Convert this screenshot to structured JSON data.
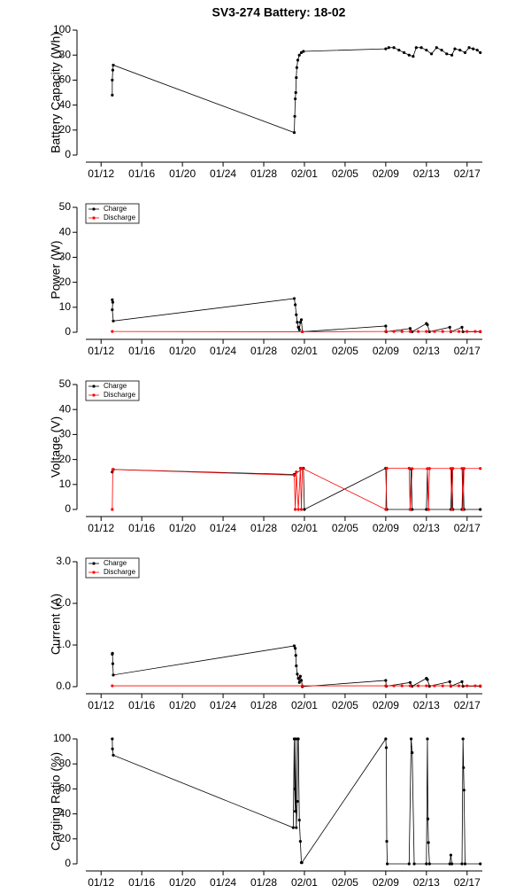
{
  "chart_data": [
    {
      "type": "line",
      "title": "SV3-274 Battery: 18-02",
      "ylabel": "Battery Capacity (Wh)",
      "xlim": [
        10.5,
        49.5
      ],
      "ylim": [
        0,
        100
      ],
      "yticks": [
        0,
        20,
        40,
        60,
        80,
        100
      ],
      "xticks": [
        {
          "value": 12,
          "label": "01/12"
        },
        {
          "value": 16,
          "label": "01/16"
        },
        {
          "value": 20,
          "label": "01/20"
        },
        {
          "value": 24,
          "label": "01/24"
        },
        {
          "value": 28,
          "label": "01/28"
        },
        {
          "value": 32,
          "label": "02/01"
        },
        {
          "value": 36,
          "label": "02/05"
        },
        {
          "value": 40,
          "label": "02/09"
        },
        {
          "value": 44,
          "label": "02/13"
        },
        {
          "value": 48,
          "label": "02/17"
        }
      ],
      "series": [
        {
          "color": "#000000",
          "x": [
            13.1,
            13.1,
            13.15,
            13.2,
            31.0,
            31.05,
            31.1,
            31.15,
            31.2,
            31.25,
            31.35,
            31.5,
            31.7,
            31.9,
            40.0,
            40.3,
            40.8,
            41.3,
            41.8,
            42.3,
            42.7,
            43.0,
            43.5,
            44.0,
            44.5,
            45.0,
            45.5,
            46.0,
            46.5,
            46.8,
            47.3,
            47.8,
            48.2,
            48.6,
            49.0,
            49.3
          ],
          "values": [
            48,
            60,
            68,
            72,
            18,
            31,
            45,
            50,
            62,
            70,
            76,
            80,
            82,
            83,
            85,
            86,
            86,
            84,
            82,
            80,
            79,
            86,
            86,
            84,
            81,
            86,
            84,
            81,
            80,
            85,
            84,
            82,
            86,
            85,
            84,
            82
          ]
        }
      ]
    },
    {
      "type": "line",
      "ylabel": "Power (W)",
      "legend": "topleft",
      "xlim": [
        10.5,
        49.5
      ],
      "ylim": [
        0,
        50
      ],
      "yticks": [
        0,
        10,
        20,
        30,
        40,
        50
      ],
      "xticks": [
        {
          "value": 12,
          "label": "01/12"
        },
        {
          "value": 16,
          "label": "01/16"
        },
        {
          "value": 20,
          "label": "01/20"
        },
        {
          "value": 24,
          "label": "01/24"
        },
        {
          "value": 28,
          "label": "01/28"
        },
        {
          "value": 32,
          "label": "02/01"
        },
        {
          "value": 36,
          "label": "02/05"
        },
        {
          "value": 40,
          "label": "02/09"
        },
        {
          "value": 44,
          "label": "02/13"
        },
        {
          "value": 48,
          "label": "02/17"
        }
      ],
      "series": [
        {
          "name": "Charge",
          "color": "#000000",
          "x": [
            13.1,
            13.15,
            13.1,
            13.2,
            31.0,
            31.1,
            31.2,
            31.3,
            31.4,
            31.5,
            31.6,
            31.7,
            31.8,
            40.0,
            40.05,
            42.4,
            42.6,
            44.0,
            44.1,
            44.3,
            46.3,
            46.4,
            47.5,
            47.6,
            49.3
          ],
          "values": [
            13,
            12,
            9,
            4.5,
            13.5,
            11,
            7,
            4,
            2,
            1,
            4,
            5,
            0.2,
            2.5,
            0.2,
            1.5,
            0.2,
            3.5,
            3,
            0.2,
            2,
            0.2,
            2,
            0.2,
            0.2
          ]
        },
        {
          "name": "Discharge",
          "color": "#ff0000",
          "x": [
            13.1,
            31.8,
            40.0,
            40.8,
            41.6,
            42.4,
            43.2,
            44.0,
            44.8,
            45.6,
            46.4,
            47.2,
            48.0,
            48.8,
            49.3
          ],
          "values": [
            0.3,
            0.2,
            0.3,
            0.3,
            0.3,
            0.3,
            0.3,
            0.3,
            0.3,
            0.3,
            0.3,
            0.3,
            0.3,
            0.3,
            0.3
          ]
        }
      ]
    },
    {
      "type": "line",
      "ylabel": "Voltage (V)",
      "legend": "topleft",
      "xlim": [
        10.5,
        49.5
      ],
      "ylim": [
        0,
        50
      ],
      "yticks": [
        0,
        10,
        20,
        30,
        40,
        50
      ],
      "xticks": [
        {
          "value": 12,
          "label": "01/12"
        },
        {
          "value": 16,
          "label": "01/16"
        },
        {
          "value": 20,
          "label": "01/20"
        },
        {
          "value": 24,
          "label": "01/24"
        },
        {
          "value": 28,
          "label": "01/28"
        },
        {
          "value": 32,
          "label": "02/01"
        },
        {
          "value": 36,
          "label": "02/05"
        },
        {
          "value": 40,
          "label": "02/09"
        },
        {
          "value": 44,
          "label": "02/13"
        },
        {
          "value": 48,
          "label": "02/17"
        }
      ],
      "series": [
        {
          "name": "Charge",
          "color": "#000000",
          "x": [
            13.1,
            13.2,
            31.0,
            31.9,
            32.0,
            40.0,
            40.1,
            42.4,
            42.5,
            42.6,
            44.0,
            44.1,
            44.2,
            46.4,
            46.5,
            46.6,
            47.5,
            47.6,
            47.7,
            49.3
          ],
          "values": [
            15,
            16,
            14,
            16.5,
            0,
            16.5,
            0,
            0,
            16.2,
            0,
            0,
            16.3,
            0,
            0,
            16.3,
            0,
            0,
            16.3,
            0,
            0
          ]
        },
        {
          "name": "Discharge",
          "color": "#ff0000",
          "x": [
            13.1,
            13.15,
            31.0,
            31.1,
            31.2,
            31.4,
            31.6,
            31.7,
            31.8,
            40.0,
            40.1,
            42.3,
            42.4,
            42.6,
            44.1,
            44.2,
            44.3,
            46.4,
            46.5,
            46.6,
            47.5,
            47.6,
            47.7,
            49.3
          ],
          "values": [
            0,
            16,
            13.7,
            0,
            15,
            0,
            16.5,
            0,
            16.5,
            0,
            16.5,
            16.5,
            0,
            16.3,
            16.3,
            0,
            16.4,
            16.4,
            0,
            16.4,
            16.4,
            0,
            16.4,
            16.4
          ]
        }
      ]
    },
    {
      "type": "line",
      "ylabel": "Current (A)",
      "legend": "topleft",
      "xlim": [
        10.5,
        49.5
      ],
      "ylim": [
        0,
        3
      ],
      "yticks": [
        {
          "value": 0,
          "label": "0.0"
        },
        {
          "value": 1,
          "label": "1.0"
        },
        {
          "value": 2,
          "label": "2.0"
        },
        {
          "value": 3,
          "label": "3.0"
        }
      ],
      "xticks": [
        {
          "value": 12,
          "label": "01/12"
        },
        {
          "value": 16,
          "label": "01/16"
        },
        {
          "value": 20,
          "label": "01/20"
        },
        {
          "value": 24,
          "label": "01/24"
        },
        {
          "value": 28,
          "label": "01/28"
        },
        {
          "value": 32,
          "label": "02/01"
        },
        {
          "value": 36,
          "label": "02/05"
        },
        {
          "value": 40,
          "label": "02/09"
        },
        {
          "value": 44,
          "label": "02/13"
        },
        {
          "value": 48,
          "label": "02/17"
        }
      ],
      "series": [
        {
          "name": "Charge",
          "color": "#000000",
          "x": [
            13.1,
            13.12,
            13.15,
            13.2,
            31.0,
            31.1,
            31.15,
            31.2,
            31.3,
            31.4,
            31.5,
            31.6,
            31.7,
            31.8,
            40.0,
            40.05,
            42.4,
            42.6,
            44.0,
            44.1,
            44.3,
            46.3,
            46.4,
            47.5,
            47.6,
            49.3
          ],
          "values": [
            0.78,
            0.8,
            0.55,
            0.28,
            0.98,
            0.92,
            0.75,
            0.5,
            0.3,
            0.2,
            0.1,
            0.25,
            0.15,
            0.0,
            0.15,
            0.01,
            0.1,
            0.01,
            0.2,
            0.17,
            0.01,
            0.12,
            0.01,
            0.12,
            0.01,
            0.01
          ]
        },
        {
          "name": "Discharge",
          "color": "#ff0000",
          "x": [
            13.1,
            31.8,
            40.0,
            40.8,
            41.6,
            42.4,
            43.2,
            44.0,
            44.8,
            45.6,
            46.4,
            47.2,
            48.0,
            48.8,
            49.3
          ],
          "values": [
            0.02,
            0.02,
            0.02,
            0.02,
            0.02,
            0.02,
            0.02,
            0.02,
            0.02,
            0.02,
            0.02,
            0.02,
            0.02,
            0.02,
            0.02
          ]
        }
      ]
    },
    {
      "type": "line",
      "ylabel": "Carging Ratio (%)",
      "xlim": [
        10.5,
        49.5
      ],
      "ylim": [
        0,
        100
      ],
      "yticks": [
        0,
        20,
        40,
        60,
        80,
        100
      ],
      "xticks": [
        {
          "value": 12,
          "label": "01/12"
        },
        {
          "value": 16,
          "label": "01/16"
        },
        {
          "value": 20,
          "label": "01/20"
        },
        {
          "value": 24,
          "label": "01/24"
        },
        {
          "value": 28,
          "label": "01/28"
        },
        {
          "value": 32,
          "label": "02/01"
        },
        {
          "value": 36,
          "label": "02/05"
        },
        {
          "value": 40,
          "label": "02/09"
        },
        {
          "value": 44,
          "label": "02/13"
        },
        {
          "value": 48,
          "label": "02/17"
        }
      ],
      "series": [
        {
          "color": "#000000",
          "x": [
            13.1,
            13.12,
            13.2,
            30.9,
            31.0,
            31.05,
            31.1,
            31.15,
            31.2,
            31.3,
            31.35,
            31.4,
            31.5,
            31.6,
            31.7,
            31.75,
            40.0,
            40.05,
            40.1,
            40.15,
            42.3,
            42.5,
            42.6,
            42.8,
            44.0,
            44.1,
            44.15,
            44.2,
            44.3,
            46.3,
            46.4,
            46.5,
            47.5,
            47.6,
            47.65,
            47.7,
            47.8,
            49.3
          ],
          "values": [
            100,
            92,
            87,
            29,
            100,
            60,
            42,
            100,
            29,
            50,
            100,
            100,
            35,
            18,
            1,
            1,
            100,
            93,
            18,
            0,
            0,
            100,
            89,
            0,
            0,
            100,
            36,
            17,
            0,
            0,
            7,
            0,
            0,
            100,
            77,
            59,
            0,
            0
          ]
        }
      ]
    }
  ]
}
